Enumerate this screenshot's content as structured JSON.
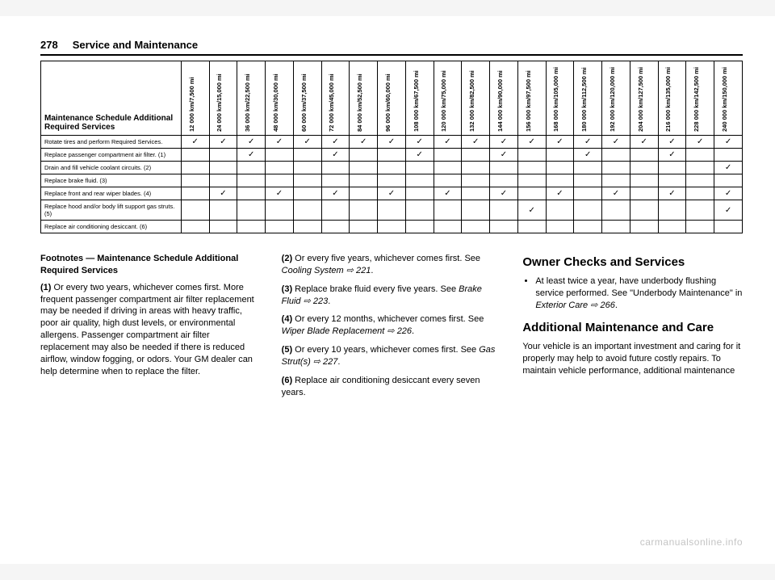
{
  "page_number": "278",
  "section_title": "Service and Maintenance",
  "table": {
    "row_header": "Maintenance Schedule Additional Required Services",
    "columns": [
      "12 000 km/7,500 mi",
      "24 000 km/15,000 mi",
      "36 000 km/22,500 mi",
      "48 000 km/30,000 mi",
      "60 000 km/37,500 mi",
      "72 000 km/45,000 mi",
      "84 000 km/52,500 mi",
      "96 000 km/60,000 mi",
      "108 000 km/67,500 mi",
      "120 000 km/75,000 mi",
      "132 000 km/82,500 mi",
      "144 000 km/90,000 mi",
      "156 000 km/97,500 mi",
      "168 000 km/105,000 mi",
      "180 000 km/112,500 mi",
      "192 000 km/120,000 mi",
      "204 000 km/127,500 mi",
      "216 000 km/135,000 mi",
      "228 000 km/142,500 mi",
      "240 000 km/150,000 mi"
    ],
    "rows": [
      {
        "label": "Rotate tires and perform Required Services.",
        "cells": [
          1,
          1,
          1,
          1,
          1,
          1,
          1,
          1,
          1,
          1,
          1,
          1,
          1,
          1,
          1,
          1,
          1,
          1,
          1,
          1
        ]
      },
      {
        "label": "Replace passenger compartment air filter. (1)",
        "cells": [
          0,
          0,
          1,
          0,
          0,
          1,
          0,
          0,
          1,
          0,
          0,
          1,
          0,
          0,
          1,
          0,
          0,
          1,
          0,
          0
        ]
      },
      {
        "label": "Drain and fill vehicle coolant circuits. (2)",
        "cells": [
          0,
          0,
          0,
          0,
          0,
          0,
          0,
          0,
          0,
          0,
          0,
          0,
          0,
          0,
          0,
          0,
          0,
          0,
          0,
          1
        ]
      },
      {
        "label": "Replace brake fluid. (3)",
        "cells": [
          0,
          0,
          0,
          0,
          0,
          0,
          0,
          0,
          0,
          0,
          0,
          0,
          0,
          0,
          0,
          0,
          0,
          0,
          0,
          0
        ]
      },
      {
        "label": "Replace front and rear wiper blades. (4)",
        "cells": [
          0,
          1,
          0,
          1,
          0,
          1,
          0,
          1,
          0,
          1,
          0,
          1,
          0,
          1,
          0,
          1,
          0,
          1,
          0,
          1
        ]
      },
      {
        "label": "Replace hood and/or body lift support gas struts. (5)",
        "cells": [
          0,
          0,
          0,
          0,
          0,
          0,
          0,
          0,
          0,
          0,
          0,
          0,
          1,
          0,
          0,
          0,
          0,
          0,
          0,
          1
        ]
      },
      {
        "label": "Replace air conditioning desiccant. (6)",
        "cells": [
          0,
          0,
          0,
          0,
          0,
          0,
          0,
          0,
          0,
          0,
          0,
          0,
          0,
          0,
          0,
          0,
          0,
          0,
          0,
          0
        ]
      }
    ],
    "check_glyph": "✓"
  },
  "footnotes_heading": "Footnotes — Maintenance Schedule Additional Required Services",
  "footnotes": {
    "f1_lead": "(1)",
    "f1_body": " Or every two years, whichever comes first. More frequent passenger compartment air filter replacement may be needed if driving in areas with heavy traffic, poor air quality, high dust levels, or environmental allergens. Passenger compartment air filter replacement may also be needed if there is reduced airflow, window fogging, or odors. Your GM dealer can help determine when to replace the filter.",
    "f2_lead": "(2)",
    "f2_body_a": " Or every five years, whichever comes first. See ",
    "f2_ref": "Cooling System ⇨ 221",
    "f2_body_b": ".",
    "f3_lead": "(3)",
    "f3_body_a": " Replace brake fluid every five years. See ",
    "f3_ref": "Brake Fluid ⇨ 223",
    "f3_body_b": ".",
    "f4_lead": "(4)",
    "f4_body_a": " Or every 12 months, whichever comes first. See ",
    "f4_ref": "Wiper Blade Replacement ⇨ 226",
    "f4_body_b": ".",
    "f5_lead": "(5)",
    "f5_body_a": " Or every 10 years, whichever comes first. See ",
    "f5_ref": "Gas Strut(s) ⇨ 227",
    "f5_body_b": ".",
    "f6_lead": "(6)",
    "f6_body": " Replace air conditioning desiccant every seven years."
  },
  "owner_checks": {
    "heading": "Owner Checks and Services",
    "bullet_a": "At least twice a year, have underbody flushing service performed. See \"Underbody Maintenance\" in ",
    "bullet_ref": "Exterior Care ⇨ 266",
    "bullet_b": "."
  },
  "additional": {
    "heading": "Additional Maintenance and Care",
    "body": "Your vehicle is an important investment and caring for it properly may help to avoid future costly repairs. To maintain vehicle performance, additional maintenance"
  },
  "watermark": "carmanualsonline.info"
}
